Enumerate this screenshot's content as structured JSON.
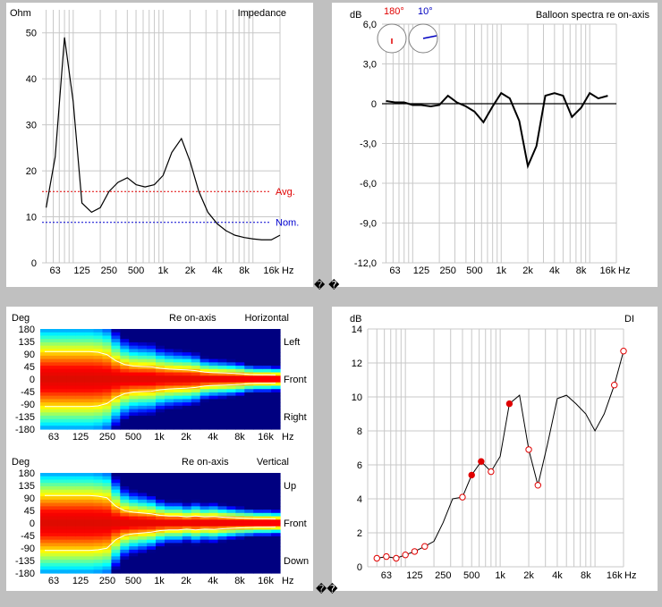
{
  "separators": {
    "top": "� �",
    "bottom": "��"
  },
  "colors": {
    "avg": "#e00000",
    "nom": "#0000d0",
    "curve": "#000000",
    "grid": "#c8c8c8",
    "marker": "#e00000"
  },
  "chart_data": [
    {
      "id": "impedance",
      "type": "line",
      "title": "Impedance",
      "ylabel": "Ohm",
      "xlabel": "Hz",
      "ylim": [
        0,
        55
      ],
      "yticks": [
        0,
        10,
        20,
        30,
        40,
        50
      ],
      "ytick_labels": [
        "0",
        "10",
        "20",
        "30",
        "40",
        "50"
      ],
      "x_scale": "log",
      "xlim": [
        45,
        20000
      ],
      "xticks": [
        63,
        125,
        250,
        500,
        1000,
        2000,
        4000,
        8000,
        16000
      ],
      "xtick_labels": [
        "63",
        "125",
        "250",
        "500",
        "1k",
        "2k",
        "4k",
        "8k",
        "16k"
      ],
      "x": [
        50,
        63,
        80,
        100,
        125,
        160,
        200,
        250,
        315,
        400,
        500,
        630,
        800,
        1000,
        1250,
        1600,
        2000,
        2500,
        3150,
        4000,
        5000,
        6300,
        8000,
        10000,
        12500,
        16000,
        20000
      ],
      "values": [
        12,
        23,
        49,
        35,
        13,
        11,
        12,
        15.5,
        17.5,
        18.5,
        17,
        16.5,
        17,
        19,
        24,
        27,
        22,
        15.5,
        11,
        8.5,
        7,
        6,
        5.5,
        5.2,
        5,
        5,
        6
      ],
      "reference_lines": [
        {
          "label": "Avg.",
          "value": 15.5
        },
        {
          "label": "Nom.",
          "value": 8.8
        }
      ]
    },
    {
      "id": "balloon",
      "type": "line",
      "title": "Balloon spectra re on-axis",
      "ylabel": "dB",
      "xlabel": "Hz",
      "ylim": [
        -12,
        6
      ],
      "yticks": [
        6,
        3,
        0,
        -3,
        -6,
        -9,
        -12
      ],
      "ytick_labels": [
        "6,0",
        "3,0",
        "0",
        "-3,0",
        "-6,0",
        "-9,0",
        "-12,0"
      ],
      "x_scale": "log",
      "xlim": [
        45,
        20000
      ],
      "xticks": [
        63,
        125,
        250,
        500,
        1000,
        2000,
        4000,
        8000,
        16000
      ],
      "xtick_labels": [
        "63",
        "125",
        "250",
        "500",
        "1k",
        "2k",
        "4k",
        "8k",
        "16k"
      ],
      "x": [
        50,
        63,
        80,
        100,
        125,
        160,
        200,
        250,
        315,
        400,
        500,
        630,
        800,
        1000,
        1250,
        1600,
        2000,
        2500,
        3150,
        4000,
        5000,
        6300,
        8000,
        10000,
        12500,
        16000
      ],
      "values": [
        0.2,
        0.1,
        0.1,
        -0.1,
        -0.1,
        -0.2,
        -0.1,
        0.6,
        0.1,
        -0.2,
        -0.6,
        -1.4,
        -0.2,
        0.8,
        0.4,
        -1.3,
        -4.7,
        -3.2,
        0.6,
        0.8,
        0.6,
        -1,
        -0.3,
        0.8,
        0.4,
        0.6
      ],
      "legend": [
        {
          "label": "180°",
          "color": "#e00000"
        },
        {
          "label": "10°",
          "color": "#0000c0"
        }
      ]
    },
    {
      "id": "horizontal",
      "type": "heatmap",
      "title": "Horizontal",
      "subtitle": "Re on-axis",
      "ylabel": "Deg",
      "xlabel": "Hz",
      "yticks": [
        180,
        135,
        90,
        45,
        0,
        -45,
        -90,
        -135,
        -180
      ],
      "ytick_labels": [
        "180",
        "135",
        "90",
        "45",
        "0",
        "-45",
        "-90",
        "-135",
        "-180"
      ],
      "xtick_labels": [
        "63",
        "125",
        "250",
        "500",
        "1k",
        "2k",
        "4k",
        "8k",
        "16k"
      ],
      "side_labels": [
        "Left",
        "Front",
        "Right"
      ],
      "x": [
        50,
        63,
        80,
        100,
        125,
        160,
        200,
        250,
        315,
        400,
        500,
        630,
        800,
        1000,
        1250,
        1600,
        2000,
        2500,
        3150,
        4000,
        5000,
        6300,
        8000,
        10000,
        12500,
        16000,
        20000
      ],
      "half_width_deg": [
        180,
        180,
        180,
        180,
        180,
        180,
        175,
        160,
        120,
        95,
        85,
        82,
        80,
        70,
        65,
        62,
        60,
        55,
        45,
        42,
        40,
        38,
        35,
        30,
        28,
        28,
        26
      ]
    },
    {
      "id": "vertical",
      "type": "heatmap",
      "title": "Vertical",
      "subtitle": "Re on-axis",
      "ylabel": "Deg",
      "xlabel": "Hz",
      "yticks": [
        180,
        135,
        90,
        45,
        0,
        -45,
        -90,
        -135,
        -180
      ],
      "ytick_labels": [
        "180",
        "135",
        "90",
        "45",
        "0",
        "-45",
        "-90",
        "-135",
        "-180"
      ],
      "xtick_labels": [
        "63",
        "125",
        "250",
        "500",
        "1k",
        "2k",
        "4k",
        "8k",
        "16k"
      ],
      "side_labels": [
        "Up",
        "Front",
        "Down"
      ],
      "x": [
        50,
        63,
        80,
        100,
        125,
        160,
        200,
        250,
        315,
        400,
        500,
        630,
        800,
        1000,
        1250,
        1600,
        2000,
        2500,
        3150,
        4000,
        5000,
        6300,
        8000,
        10000,
        12500,
        16000,
        20000
      ],
      "half_width_deg": [
        180,
        180,
        180,
        180,
        180,
        180,
        175,
        165,
        110,
        80,
        70,
        65,
        60,
        50,
        45,
        45,
        40,
        45,
        40,
        42,
        38,
        35,
        32,
        30,
        28,
        28,
        26
      ]
    },
    {
      "id": "di",
      "type": "line",
      "title": "DI",
      "ylabel": "dB",
      "xlabel": "Hz",
      "ylim": [
        0,
        14
      ],
      "yticks": [
        0,
        2,
        4,
        6,
        8,
        10,
        12,
        14
      ],
      "ytick_labels": [
        "0",
        "2",
        "4",
        "6",
        "8",
        "10",
        "12",
        "14"
      ],
      "x_scale": "log",
      "xlim": [
        40,
        20000
      ],
      "xticks": [
        63,
        125,
        250,
        500,
        1000,
        2000,
        4000,
        8000,
        16000
      ],
      "xtick_labels": [
        "63",
        "125",
        "250",
        "500",
        "1k",
        "2k",
        "4k",
        "8k",
        "16k"
      ],
      "x": [
        50,
        63,
        80,
        100,
        125,
        160,
        200,
        250,
        315,
        400,
        500,
        630,
        800,
        1000,
        1250,
        1600,
        2000,
        2500,
        3150,
        4000,
        5000,
        6300,
        8000,
        10000,
        12500,
        16000,
        20000
      ],
      "values": [
        0.5,
        0.6,
        0.5,
        0.7,
        0.9,
        1.2,
        1.5,
        2.6,
        4,
        4.1,
        5.4,
        6.2,
        5.6,
        6.5,
        9.6,
        10.1,
        6.9,
        4.8,
        7.2,
        9.9,
        10.1,
        9.6,
        9,
        8,
        9,
        10.7,
        12.7
      ],
      "markers": [
        {
          "x": 50,
          "value": 0.5,
          "filled": false
        },
        {
          "x": 63,
          "value": 0.6,
          "filled": false
        },
        {
          "x": 80,
          "value": 0.5,
          "filled": false
        },
        {
          "x": 100,
          "value": 0.7,
          "filled": false
        },
        {
          "x": 125,
          "value": 0.9,
          "filled": false
        },
        {
          "x": 160,
          "value": 1.2,
          "filled": false
        },
        {
          "x": 400,
          "value": 4.1,
          "filled": false
        },
        {
          "x": 500,
          "value": 5.4,
          "filled": true
        },
        {
          "x": 630,
          "value": 6.2,
          "filled": true
        },
        {
          "x": 800,
          "value": 5.6,
          "filled": false
        },
        {
          "x": 1250,
          "value": 9.6,
          "filled": true
        },
        {
          "x": 2000,
          "value": 6.9,
          "filled": false
        },
        {
          "x": 2500,
          "value": 4.8,
          "filled": false
        },
        {
          "x": 16000,
          "value": 10.7,
          "filled": false
        },
        {
          "x": 20000,
          "value": 12.7,
          "filled": false
        }
      ]
    }
  ]
}
